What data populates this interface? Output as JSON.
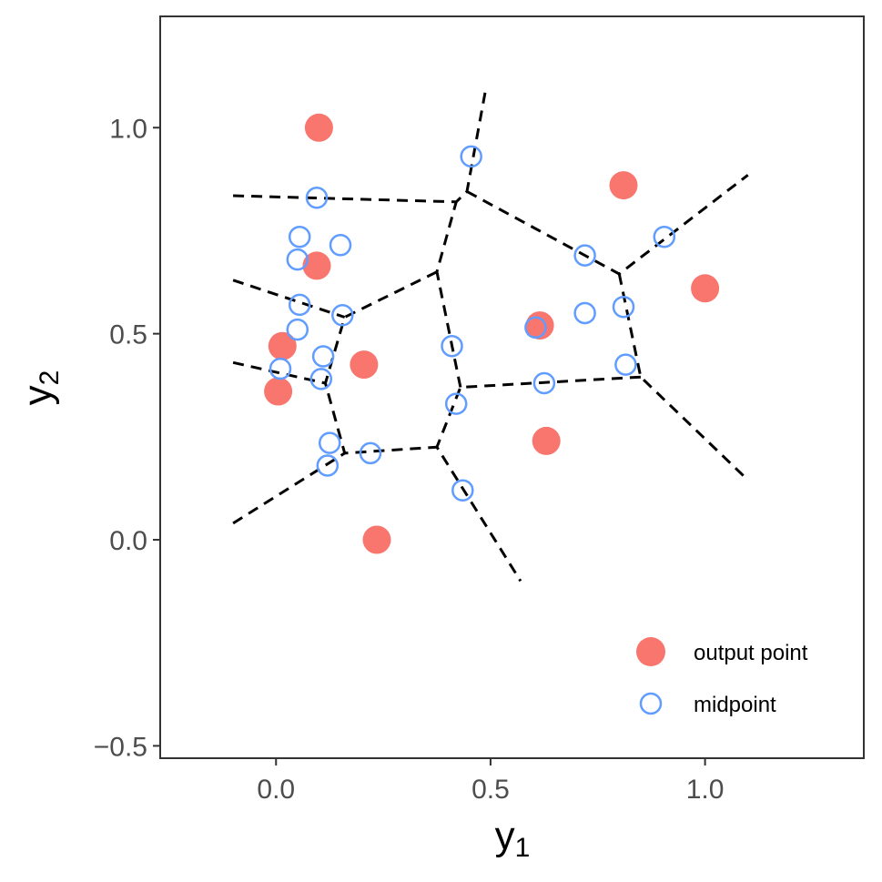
{
  "chart_data": {
    "type": "scatter",
    "xlabel": "y",
    "xlabel_sub": "1",
    "ylabel": "y",
    "ylabel_sub": "2",
    "xlim": [
      -0.27,
      1.37
    ],
    "ylim": [
      -0.53,
      1.27
    ],
    "x_ticks": [
      {
        "value": 0.0,
        "label": "0.0"
      },
      {
        "value": 0.5,
        "label": "0.5"
      },
      {
        "value": 1.0,
        "label": "1.0"
      }
    ],
    "y_ticks": [
      {
        "value": -0.5,
        "label": "−0.5"
      },
      {
        "value": 0.0,
        "label": "0.0"
      },
      {
        "value": 0.5,
        "label": "0.5"
      },
      {
        "value": 1.0,
        "label": "1.0"
      }
    ],
    "grid": false,
    "legend_position": "bottom-right",
    "colors": {
      "output_point": "#F8766D",
      "midpoint": "#619CFF",
      "boundary": "#000000"
    },
    "series": [
      {
        "name": "output point",
        "marker": "filled-circle",
        "points": [
          {
            "x": 0.1,
            "y": 1.0
          },
          {
            "x": 0.81,
            "y": 0.86
          },
          {
            "x": 0.095,
            "y": 0.665
          },
          {
            "x": 1.0,
            "y": 0.61
          },
          {
            "x": 0.615,
            "y": 0.52
          },
          {
            "x": 0.015,
            "y": 0.47
          },
          {
            "x": 0.205,
            "y": 0.425
          },
          {
            "x": 0.005,
            "y": 0.36
          },
          {
            "x": 0.63,
            "y": 0.24
          },
          {
            "x": 0.235,
            "y": 0.0
          }
        ]
      },
      {
        "name": "midpoint",
        "marker": "open-circle",
        "points": [
          {
            "x": 0.455,
            "y": 0.93
          },
          {
            "x": 0.095,
            "y": 0.83
          },
          {
            "x": 0.055,
            "y": 0.735
          },
          {
            "x": 0.15,
            "y": 0.715
          },
          {
            "x": 0.05,
            "y": 0.68
          },
          {
            "x": 0.72,
            "y": 0.69
          },
          {
            "x": 0.905,
            "y": 0.735
          },
          {
            "x": 0.055,
            "y": 0.57
          },
          {
            "x": 0.155,
            "y": 0.545
          },
          {
            "x": 0.05,
            "y": 0.51
          },
          {
            "x": 0.72,
            "y": 0.55
          },
          {
            "x": 0.81,
            "y": 0.565
          },
          {
            "x": 0.605,
            "y": 0.515
          },
          {
            "x": 0.41,
            "y": 0.47
          },
          {
            "x": 0.11,
            "y": 0.445
          },
          {
            "x": 0.01,
            "y": 0.415
          },
          {
            "x": 0.105,
            "y": 0.39
          },
          {
            "x": 0.815,
            "y": 0.425
          },
          {
            "x": 0.625,
            "y": 0.38
          },
          {
            "x": 0.42,
            "y": 0.33
          },
          {
            "x": 0.125,
            "y": 0.235
          },
          {
            "x": 0.22,
            "y": 0.21
          },
          {
            "x": 0.12,
            "y": 0.18
          },
          {
            "x": 0.435,
            "y": 0.12
          }
        ]
      }
    ],
    "boundaries": [
      [
        [
          -0.1,
          0.835
        ],
        [
          0.42,
          0.82
        ],
        [
          0.445,
          0.845
        ],
        [
          0.49,
          1.1
        ]
      ],
      [
        [
          0.445,
          0.845
        ],
        [
          0.8,
          0.645
        ],
        [
          1.1,
          0.885
        ]
      ],
      [
        [
          0.8,
          0.645
        ],
        [
          0.85,
          0.395
        ],
        [
          1.1,
          0.145
        ]
      ],
      [
        [
          0.85,
          0.395
        ],
        [
          0.43,
          0.37
        ],
        [
          0.375,
          0.225
        ],
        [
          0.57,
          -0.1
        ]
      ],
      [
        [
          0.43,
          0.37
        ],
        [
          0.375,
          0.65
        ],
        [
          0.42,
          0.82
        ]
      ],
      [
        [
          0.375,
          0.65
        ],
        [
          0.16,
          0.54
        ],
        [
          0.115,
          0.38
        ],
        [
          0.16,
          0.21
        ],
        [
          0.375,
          0.225
        ]
      ],
      [
        [
          -0.1,
          0.63
        ],
        [
          0.16,
          0.54
        ]
      ],
      [
        [
          -0.1,
          0.43
        ],
        [
          0.115,
          0.38
        ]
      ],
      [
        [
          -0.1,
          0.04
        ],
        [
          0.16,
          0.21
        ]
      ]
    ]
  }
}
